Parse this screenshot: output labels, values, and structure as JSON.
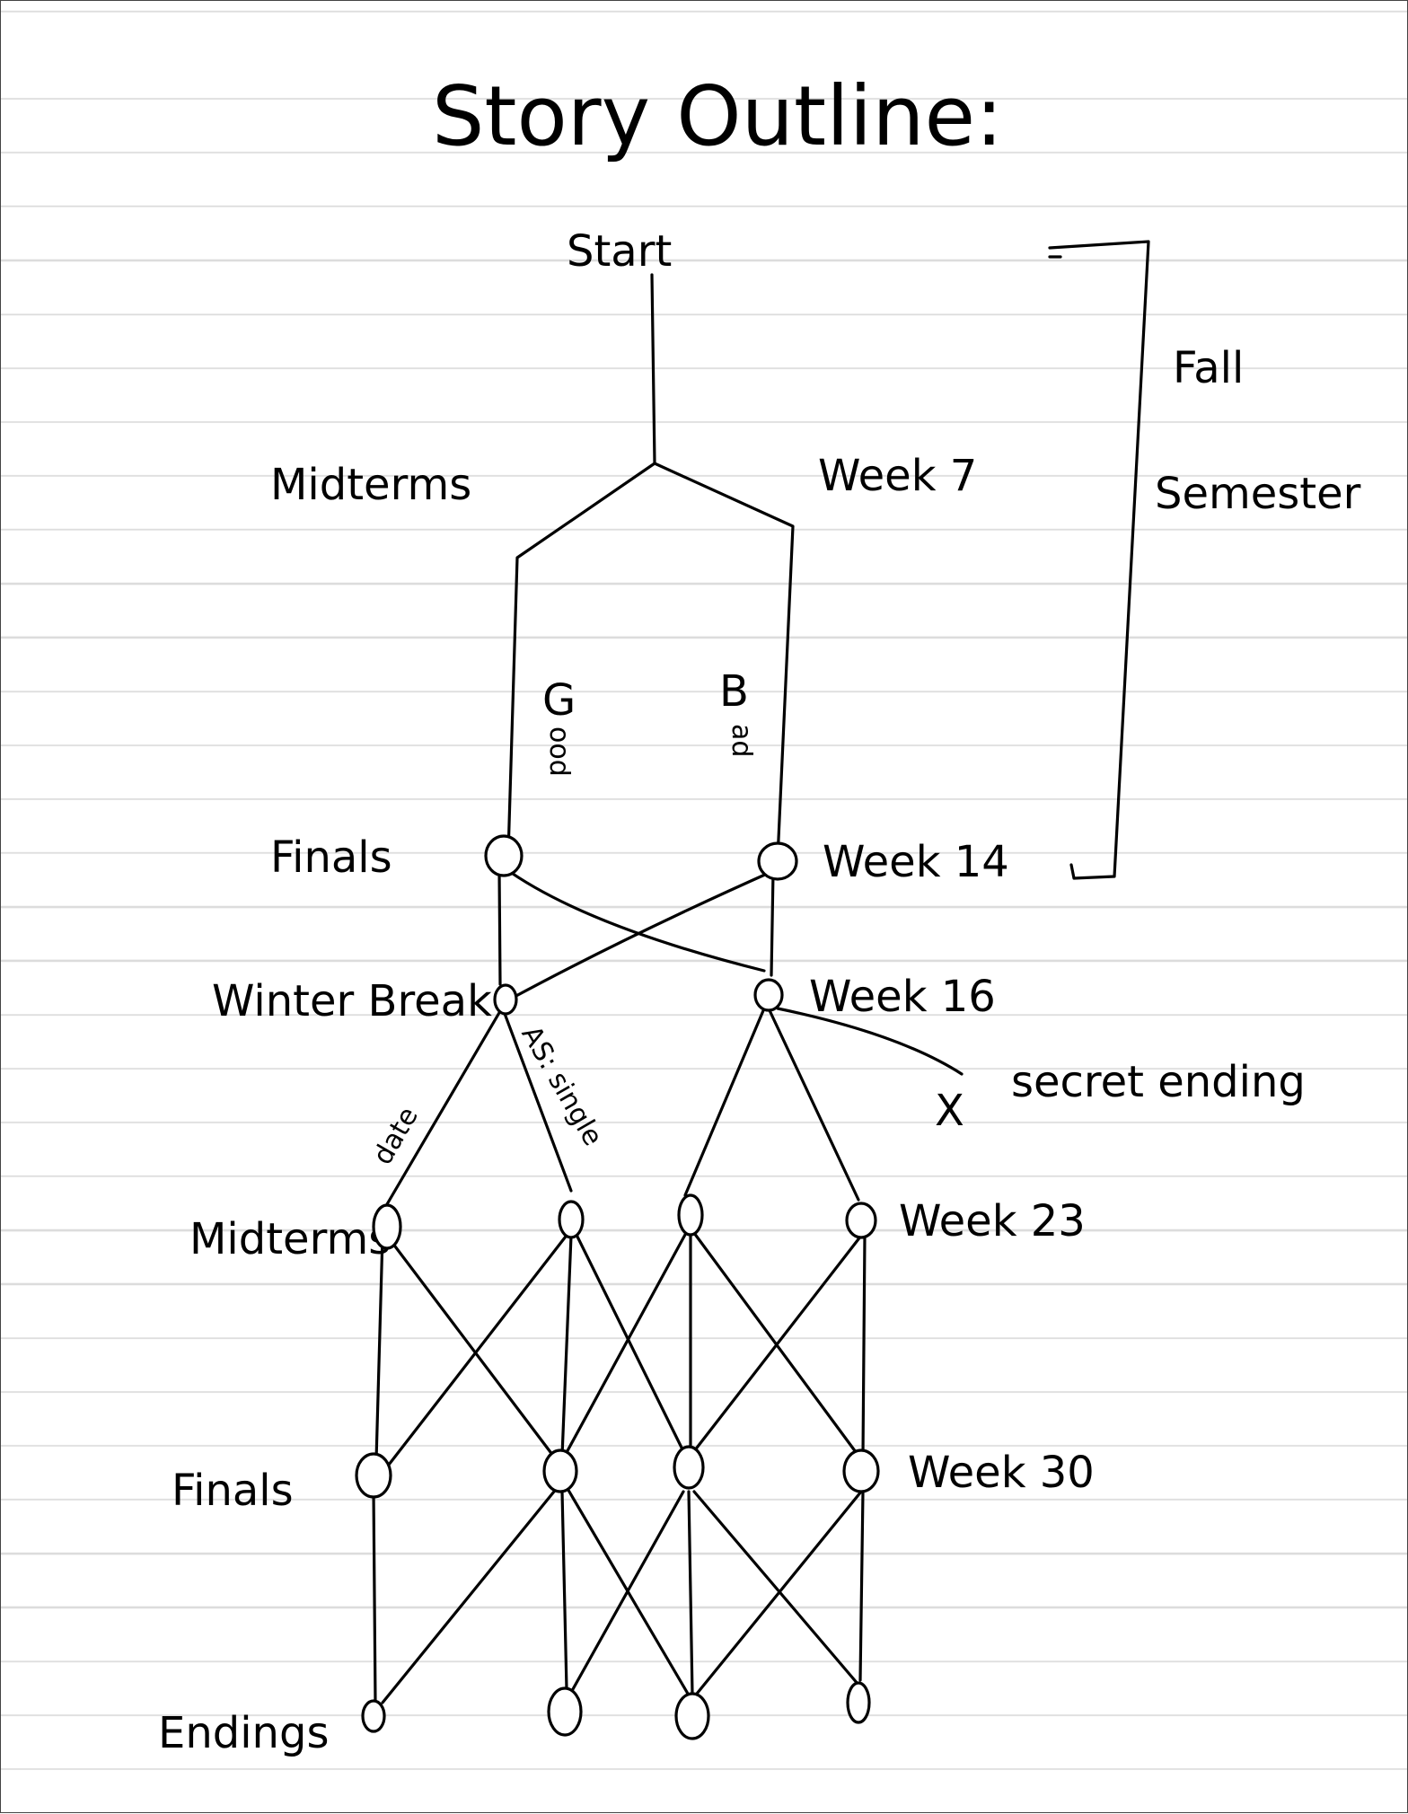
{
  "title": "Story Outline:",
  "start": "Start",
  "left_labels": {
    "midterms1": "Midterms",
    "finals1": "Finals",
    "winter_break": "Winter Break",
    "midterms2": "Midterms",
    "finals2": "Finals",
    "endings": "Endings"
  },
  "right_labels": {
    "week7": "Week 7",
    "week14": "Week 14",
    "week16": "Week 16",
    "week23": "Week 23",
    "week30": "Week 30"
  },
  "bracket_label": {
    "line1": "Fall",
    "line2": "Semester"
  },
  "branch_labels": {
    "good": "G",
    "good_rest": "ood",
    "bad": "B",
    "bad_rest": "ad",
    "date": "date",
    "single": "AS: single"
  },
  "secret": {
    "mark": "X",
    "label": "secret ending"
  }
}
